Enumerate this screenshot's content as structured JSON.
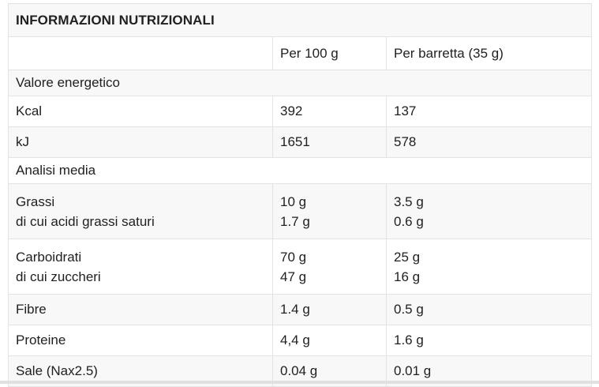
{
  "nutrition_table": {
    "title": "INFORMAZIONI NUTRIZIONALI",
    "columns": {
      "label": "",
      "per100": "Per 100 g",
      "per_bar": "Per barretta (35 g)"
    },
    "rows": [
      {
        "type": "section",
        "label": "Valore energetico"
      },
      {
        "type": "data",
        "label": "Kcal",
        "per100": "392",
        "per_bar": "137"
      },
      {
        "type": "data",
        "label": "kJ",
        "per100": "1651",
        "per_bar": "578"
      },
      {
        "type": "section",
        "label": "Analisi media"
      },
      {
        "type": "data",
        "label": "Grassi",
        "sub_label": "di cui acidi grassi saturi",
        "per100": "10 g",
        "sub_per100": "1.7 g",
        "per_bar": "3.5 g",
        "sub_per_bar": "0.6 g"
      },
      {
        "type": "data",
        "label": "Carboidrati",
        "sub_label": "di cui zuccheri",
        "per100": "70 g",
        "sub_per100": "47 g",
        "per_bar": "25 g",
        "sub_per_bar": "16 g"
      },
      {
        "type": "data",
        "label": "Fibre",
        "per100": "1.4 g",
        "per_bar": "0.5 g"
      },
      {
        "type": "data",
        "label": "Proteine",
        "per100": "4,4 g",
        "per_bar": "1.6 g"
      },
      {
        "type": "data",
        "label": "Sale (Nax2.5)",
        "per100": "0.04 g",
        "per_bar": "0.01 g"
      }
    ],
    "colors": {
      "stripe": "#f8f8f8",
      "inner_border": "#e3e3e3",
      "outer_border": "#cfcfcf",
      "text": "#212121",
      "bottom_bar": "#e0e0e0"
    }
  }
}
